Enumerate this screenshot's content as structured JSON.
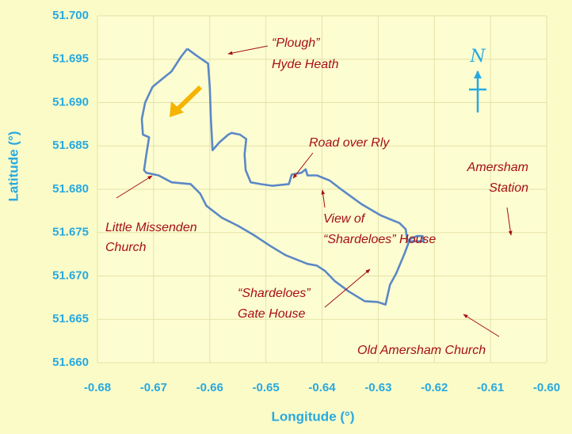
{
  "chart_data": {
    "type": "line",
    "x_label": "Longitude (°)",
    "y_label": "Latitude (°)",
    "xlim": [
      -0.68,
      -0.6
    ],
    "ylim": [
      51.66,
      51.7
    ],
    "xticks": [
      -0.68,
      -0.67,
      -0.66,
      -0.65,
      -0.64,
      -0.63,
      -0.62,
      -0.61,
      {
        "value": -0.6,
        "label": "-0.60"
      }
    ],
    "yticks": [
      {
        "value": 51.66,
        "label": "51.660"
      },
      51.665,
      {
        "value": 51.67,
        "label": "51.670"
      },
      51.675,
      {
        "value": 51.68,
        "label": "51.680"
      },
      51.685,
      {
        "value": 51.69,
        "label": "51.690"
      },
      51.695,
      {
        "value": 51.7,
        "label": "51.700"
      }
    ],
    "grid": true,
    "series": [
      {
        "color": "#5b88c5",
        "x": [
          -0.664,
          -0.6623,
          -0.6603,
          -0.66,
          -0.6598,
          -0.6595,
          -0.6583,
          -0.6567,
          -0.6561,
          -0.6546,
          -0.6535,
          -0.6538,
          -0.6536,
          -0.6527,
          -0.651,
          -0.6488,
          -0.6459,
          -0.6454,
          -0.6437,
          -0.6429,
          -0.6426,
          -0.6409,
          -0.6386,
          -0.6364,
          -0.633,
          -0.6296,
          -0.6262,
          -0.6251,
          -0.6248,
          -0.6242,
          -0.6231,
          -0.6221,
          -0.6219,
          -0.6234,
          -0.6245,
          -0.6253,
          -0.6268,
          -0.6279,
          -0.6287,
          -0.6301,
          -0.6324,
          -0.6352,
          -0.6377,
          -0.6395,
          -0.6409,
          -0.6426,
          -0.6465,
          -0.6493,
          -0.6521,
          -0.655,
          -0.6578,
          -0.6606,
          -0.6617,
          -0.6634,
          -0.6668,
          -0.6691,
          -0.6713,
          -0.6717,
          -0.6713,
          -0.6708,
          -0.6719,
          -0.6721,
          -0.6715,
          -0.6702,
          -0.6685,
          -0.6668,
          -0.6651,
          -0.664
        ],
        "values": [
          51.6962,
          51.6954,
          51.6945,
          51.6918,
          51.6881,
          51.6845,
          51.6854,
          51.6863,
          51.6865,
          51.6863,
          51.6858,
          51.684,
          51.6822,
          51.6808,
          51.6806,
          51.6804,
          51.6806,
          51.6817,
          51.6819,
          51.6823,
          51.6816,
          51.6816,
          51.681,
          51.6799,
          51.6783,
          51.677,
          51.6761,
          51.6754,
          51.674,
          51.6743,
          51.6746,
          51.6746,
          51.674,
          51.674,
          51.674,
          51.6726,
          51.6703,
          51.669,
          51.6667,
          51.667,
          51.6671,
          51.6682,
          51.6694,
          51.6706,
          51.6712,
          51.6714,
          51.6724,
          51.6735,
          51.6747,
          51.6758,
          51.6767,
          51.6781,
          51.6795,
          51.6806,
          51.6808,
          51.6816,
          51.6819,
          51.6822,
          51.684,
          51.686,
          51.6863,
          51.6881,
          51.69,
          51.6918,
          51.6927,
          51.6936,
          51.6953,
          51.6962
        ]
      }
    ],
    "annotations": [
      {
        "lines": [
          "“Plough”",
          "Hyde Heath"
        ]
      },
      {
        "lines": [
          "Road over Rly"
        ]
      },
      {
        "lines": [
          "Amersham",
          "Station"
        ]
      },
      {
        "lines": [
          "View of",
          "“Shardeloes” House"
        ]
      },
      {
        "lines": [
          "Little Missenden",
          "Church"
        ]
      },
      {
        "lines": [
          "“Shardeloes”",
          "Gate House"
        ]
      },
      {
        "lines": [
          "Old Amersham Church"
        ]
      }
    ],
    "north_label": "N"
  }
}
